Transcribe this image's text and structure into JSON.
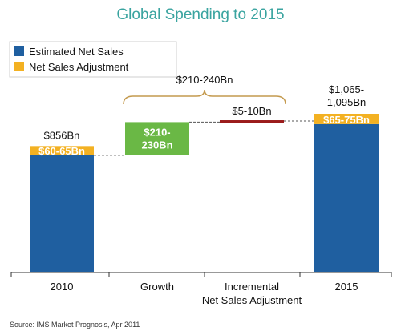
{
  "chart_data": {
    "type": "bar",
    "title": "Global Spending to 2015",
    "categories": [
      "2010",
      "Growth",
      "Incremental Net Sales Adjustment",
      "2015"
    ],
    "category_lines": [
      [
        "2010"
      ],
      [
        "Growth"
      ],
      [
        "Incremental",
        "Net Sales Adjustment"
      ],
      [
        "2015"
      ]
    ],
    "series": [
      {
        "name": "Estimated Net Sales",
        "color": "#1f5fa0",
        "values": [
          793.5,
          225,
          7.5,
          1005
        ]
      },
      {
        "name": "Net Sales Adjustment",
        "color": "#f3b122",
        "values": [
          62.5,
          null,
          null,
          70
        ]
      }
    ],
    "growth_color": "#6ab845",
    "adjustment_line_color": "#9b1b1b",
    "connector_style": "dashed",
    "ylim": [
      0,
      1100
    ],
    "grid": false,
    "legend_position": "top-left",
    "value_labels": {
      "total_2010": "$856Bn",
      "adjust_2010": "$60-65Bn",
      "growth": [
        "$210-",
        "230Bn"
      ],
      "adjustment": "$5-10Bn",
      "total_2015": [
        "$1,065-",
        "1,095Bn"
      ],
      "adjust_2015": "$65-75Bn"
    },
    "bracket_label": "$210-240Bn",
    "source": "Source: IMS Market Prognosis, Apr 2011"
  }
}
